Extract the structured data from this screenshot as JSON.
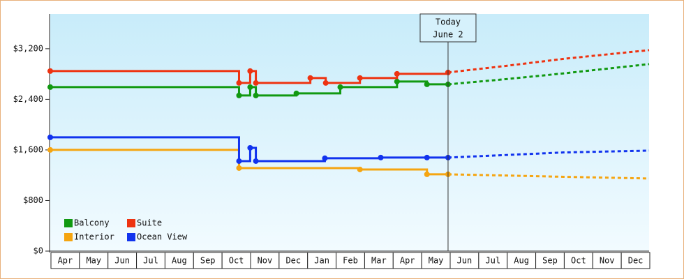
{
  "chart_data": {
    "type": "step-line",
    "categories": [
      "Apr",
      "May",
      "Jun",
      "Jul",
      "Aug",
      "Sep",
      "Oct",
      "Nov",
      "Dec",
      "Jan",
      "Feb",
      "Mar",
      "Apr",
      "May",
      "Jun",
      "Jul",
      "Aug",
      "Sep",
      "Oct",
      "Nov",
      "Dec"
    ],
    "xlim": [
      0,
      21
    ],
    "ylim": [
      0,
      3750
    ],
    "yticks": [
      {
        "value": 0,
        "label": "$0"
      },
      {
        "value": 800,
        "label": "$800"
      },
      {
        "value": 1600,
        "label": "$1,600"
      },
      {
        "value": 2400,
        "label": "$2,400"
      },
      {
        "value": 3200,
        "label": "$3,200"
      }
    ],
    "legend": "bottom-left",
    "annotation": {
      "x": 13.95,
      "lines": [
        "Today",
        "June 2"
      ]
    },
    "series": [
      {
        "name": "Balcony",
        "color": "#119911",
        "x": [
          0,
          6.62,
          7.01,
          7.21,
          8.63,
          10.17,
          12.16,
          13.21,
          13.95
        ],
        "values": [
          2593,
          2461,
          2593,
          2461,
          2494,
          2593,
          2681,
          2637,
          2637
        ],
        "forecast": {
          "x": [
            13.95,
            16,
            18,
            21
          ],
          "values": [
            2637,
            2720,
            2810,
            2957
          ]
        }
      },
      {
        "name": "Suite",
        "color": "#ee3311",
        "x": [
          0,
          6.62,
          7.01,
          7.21,
          9.12,
          9.66,
          10.86,
          12.16,
          13.95
        ],
        "values": [
          2847,
          2659,
          2847,
          2659,
          2737,
          2659,
          2737,
          2803,
          2825
        ],
        "forecast": {
          "x": [
            13.95,
            16,
            18,
            21
          ],
          "values": [
            2825,
            2930,
            3040,
            3178
          ]
        }
      },
      {
        "name": "Interior",
        "color": "#f5a511",
        "x": [
          0,
          6.62,
          10.86,
          13.21,
          13.95
        ],
        "values": [
          1600,
          1313,
          1291,
          1214,
          1214
        ],
        "forecast": {
          "x": [
            13.95,
            16,
            18,
            21
          ],
          "values": [
            1214,
            1195,
            1175,
            1148
          ]
        }
      },
      {
        "name": "Ocean View",
        "color": "#1133ee",
        "x": [
          0,
          6.62,
          7.01,
          7.21,
          9.63,
          11.59,
          13.21,
          13.95
        ],
        "values": [
          1799,
          1423,
          1633,
          1423,
          1468,
          1479,
          1479,
          1479
        ],
        "forecast": {
          "x": [
            13.95,
            16,
            18,
            21
          ],
          "values": [
            1479,
            1520,
            1560,
            1589
          ]
        }
      }
    ]
  }
}
